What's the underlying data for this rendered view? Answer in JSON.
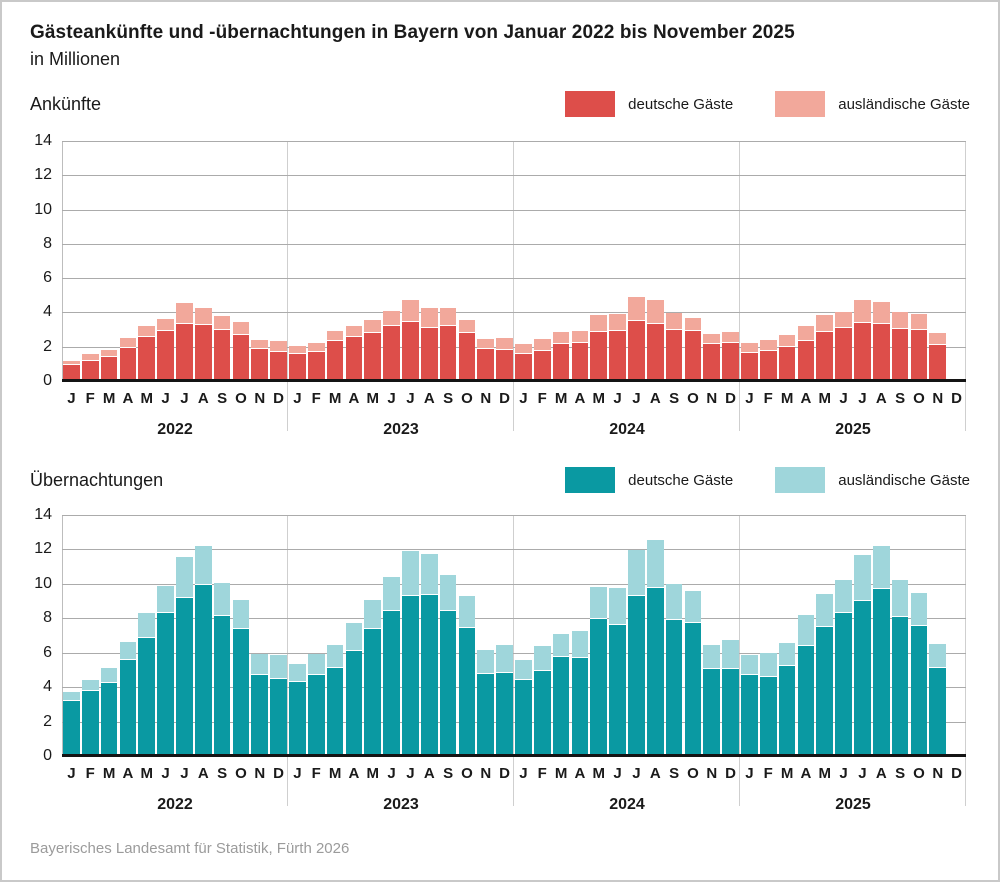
{
  "header": {
    "title": "Gästeankünfte und -übernachtungen in Bayern von Januar 2022 bis November 2025",
    "subtitle": "in Millionen"
  },
  "footer": {
    "source": "Bayerisches Landesamt für Statistik, Fürth 2026"
  },
  "colors": {
    "arrivals_domestic": "#dd4e4a",
    "arrivals_foreign": "#f2a89b",
    "overnights_domestic": "#0a99a2",
    "overnights_foreign": "#9fd6db",
    "gridline": "#ababab",
    "year_separator": "#cfcfcf",
    "axis": "#141414",
    "card_border": "#c9c9c9",
    "source_text": "#9b9b9b"
  },
  "chart_data": [
    {
      "type": "bar",
      "stacked": true,
      "label": "Ankünfte",
      "unit": "Millionen",
      "ylim": [
        0,
        14
      ],
      "yticks": [
        0,
        2,
        4,
        6,
        8,
        10,
        12,
        14
      ],
      "grid": true,
      "legend_position": "top-right",
      "years": [
        "2022",
        "2023",
        "2024",
        "2025"
      ],
      "month_letters": [
        "J",
        "F",
        "M",
        "A",
        "M",
        "J",
        "J",
        "A",
        "S",
        "O",
        "N",
        "D"
      ],
      "note": "47 monthly values Jan 2022 - Nov 2025; Dec 2025 has no bar",
      "series": [
        {
          "name": "deutsche Gäste",
          "color": "#dd4e4a",
          "values": [
            0.95,
            1.15,
            1.4,
            1.95,
            2.55,
            2.9,
            3.35,
            3.25,
            2.95,
            2.7,
            1.85,
            1.7,
            1.55,
            1.7,
            2.35,
            2.55,
            2.8,
            3.2,
            3.45,
            3.1,
            3.2,
            2.8,
            1.85,
            1.8,
            1.6,
            1.75,
            2.15,
            2.2,
            2.85,
            2.9,
            3.5,
            3.35,
            3.0,
            2.9,
            2.15,
            2.2,
            1.65,
            1.75,
            2.0,
            2.35,
            2.85,
            3.1,
            3.4,
            3.35,
            3.05,
            2.95,
            2.1
          ]
        },
        {
          "name": "ausländische Gäste",
          "color": "#f2a89b",
          "values": [
            0.15,
            0.35,
            0.3,
            0.45,
            0.6,
            0.65,
            1.1,
            0.95,
            0.75,
            0.65,
            0.45,
            0.55,
            0.4,
            0.45,
            0.5,
            0.55,
            0.65,
            0.8,
            1.2,
            1.05,
            1.0,
            0.7,
            0.5,
            0.65,
            0.45,
            0.6,
            0.65,
            0.65,
            0.9,
            0.9,
            1.3,
            1.3,
            0.9,
            0.7,
            0.5,
            0.6,
            0.5,
            0.55,
            0.6,
            0.8,
            0.9,
            0.85,
            1.25,
            1.15,
            0.9,
            0.85,
            0.6
          ]
        }
      ]
    },
    {
      "type": "bar",
      "stacked": true,
      "label": "Übernachtungen",
      "unit": "Millionen",
      "ylim": [
        0,
        14
      ],
      "yticks": [
        0,
        2,
        4,
        6,
        8,
        10,
        12,
        14
      ],
      "grid": true,
      "legend_position": "top-right",
      "years": [
        "2022",
        "2023",
        "2024",
        "2025"
      ],
      "month_letters": [
        "J",
        "F",
        "M",
        "A",
        "M",
        "J",
        "J",
        "A",
        "S",
        "O",
        "N",
        "D"
      ],
      "note": "47 monthly values Jan 2022 - Nov 2025; Dec 2025 has no bar",
      "series": [
        {
          "name": "deutsche Gäste",
          "color": "#0a99a2",
          "values": [
            3.2,
            3.75,
            4.25,
            5.55,
            6.85,
            8.3,
            9.2,
            9.95,
            8.15,
            7.35,
            4.7,
            4.5,
            4.3,
            4.7,
            5.1,
            6.1,
            7.35,
            8.45,
            9.3,
            9.35,
            8.4,
            7.45,
            4.75,
            4.8,
            4.4,
            4.95,
            5.75,
            5.7,
            7.95,
            7.6,
            9.3,
            9.75,
            7.9,
            7.7,
            5.05,
            5.05,
            4.7,
            4.6,
            5.25,
            6.4,
            7.5,
            8.3,
            9.0,
            9.7,
            8.05,
            7.55,
            5.1
          ]
        },
        {
          "name": "ausländische Gäste",
          "color": "#9fd6db",
          "values": [
            0.45,
            0.6,
            0.75,
            1.0,
            1.35,
            1.5,
            2.25,
            2.15,
            1.8,
            1.65,
            1.15,
            1.3,
            0.95,
            1.15,
            1.25,
            1.55,
            1.65,
            1.85,
            2.55,
            2.3,
            2.0,
            1.75,
            1.3,
            1.55,
            1.1,
            1.35,
            1.25,
            1.45,
            1.8,
            2.05,
            2.6,
            2.7,
            2.0,
            1.8,
            1.3,
            1.6,
            1.1,
            1.3,
            1.25,
            1.7,
            1.8,
            1.85,
            2.6,
            2.4,
            2.1,
            1.85,
            1.3
          ]
        }
      ]
    }
  ]
}
